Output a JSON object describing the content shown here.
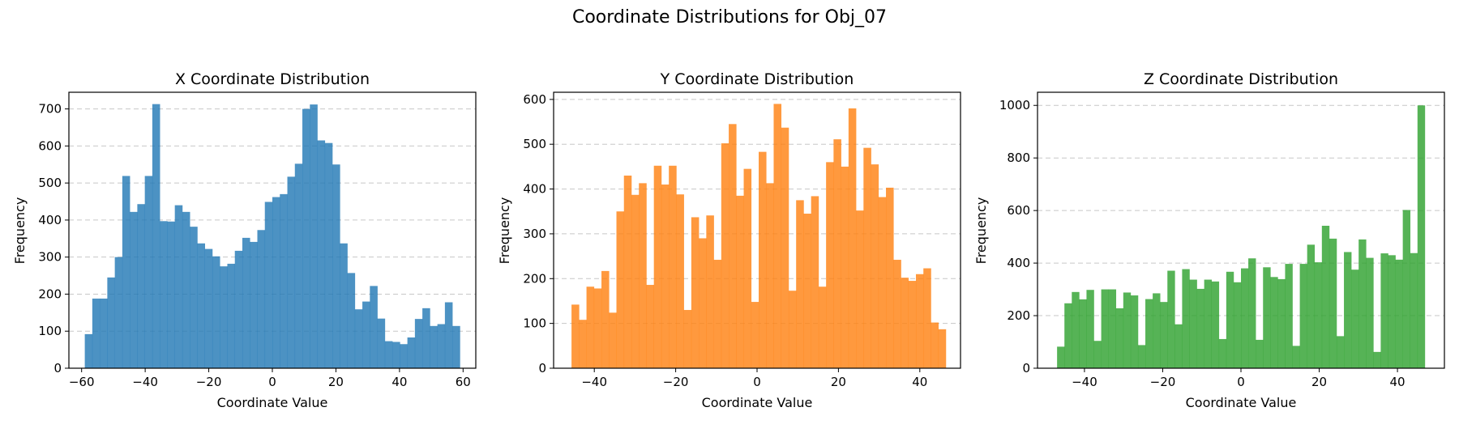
{
  "figure": {
    "title": "Coordinate Distributions for Obj_07"
  },
  "chart_data": [
    {
      "type": "bar",
      "title": "X Coordinate Distribution",
      "xlabel": "Coordinate Value",
      "ylabel": "Frequency",
      "color": "#1f77b4",
      "bar_opacity": 0.8,
      "grid": "y-dashed",
      "xlim": [
        -64,
        64
      ],
      "ylim": [
        0,
        745
      ],
      "xticks": [
        -60,
        -40,
        -20,
        0,
        20,
        40,
        60
      ],
      "yticks": [
        0,
        100,
        200,
        300,
        400,
        500,
        600,
        700
      ],
      "xtick_labels": [
        "−60",
        "−40",
        "−20",
        "0",
        "20",
        "40",
        "60"
      ],
      "ytick_labels": [
        "0",
        "100",
        "200",
        "300",
        "400",
        "500",
        "600",
        "700"
      ],
      "bin_start": -59,
      "bin_width": 2.36,
      "values": [
        92,
        188,
        188,
        245,
        300,
        519,
        422,
        443,
        519,
        713,
        397,
        396,
        440,
        422,
        382,
        337,
        322,
        302,
        275,
        282,
        317,
        352,
        341,
        373,
        449,
        462,
        470,
        517,
        552,
        700,
        712,
        615,
        608,
        550,
        337,
        257,
        159,
        180,
        222,
        134,
        73,
        71,
        65,
        83,
        133,
        162,
        114,
        119,
        178,
        114
      ]
    },
    {
      "type": "bar",
      "title": "Y Coordinate Distribution",
      "xlabel": "Coordinate Value",
      "ylabel": "Frequency",
      "color": "#ff7f0e",
      "bar_opacity": 0.8,
      "grid": "y-dashed",
      "xlim": [
        -50,
        50
      ],
      "ylim": [
        0,
        616
      ],
      "xticks": [
        -40,
        -20,
        0,
        20,
        40
      ],
      "yticks": [
        0,
        100,
        200,
        300,
        400,
        500,
        600
      ],
      "xtick_labels": [
        "−40",
        "−20",
        "0",
        "20",
        "40"
      ],
      "ytick_labels": [
        "0",
        "100",
        "200",
        "300",
        "400",
        "500",
        "600"
      ],
      "bin_start": -45.6,
      "bin_width": 1.84,
      "values": [
        142,
        108,
        182,
        178,
        217,
        124,
        350,
        430,
        387,
        413,
        186,
        452,
        410,
        452,
        388,
        130,
        337,
        290,
        341,
        242,
        502,
        545,
        385,
        445,
        148,
        483,
        413,
        590,
        537,
        173,
        375,
        345,
        384,
        182,
        460,
        511,
        450,
        580,
        352,
        492,
        455,
        382,
        403,
        242,
        202,
        195,
        210,
        223,
        102,
        87
      ]
    },
    {
      "type": "bar",
      "title": "Z Coordinate Distribution",
      "xlabel": "Coordinate Value",
      "ylabel": "Frequency",
      "color": "#2ca02c",
      "bar_opacity": 0.8,
      "grid": "y-dashed",
      "xlim": [
        -52,
        52
      ],
      "ylim": [
        0,
        1050
      ],
      "xticks": [
        -40,
        -20,
        0,
        20,
        40
      ],
      "yticks": [
        0,
        200,
        400,
        600,
        800,
        1000
      ],
      "xtick_labels": [
        "−40",
        "−20",
        "0",
        "20",
        "40"
      ],
      "ytick_labels": [
        "0",
        "200",
        "400",
        "600",
        "800",
        "1000"
      ],
      "bin_start": -47,
      "bin_width": 1.88,
      "values": [
        82,
        247,
        290,
        262,
        298,
        104,
        300,
        300,
        228,
        288,
        277,
        88,
        263,
        285,
        252,
        371,
        167,
        377,
        337,
        302,
        337,
        330,
        111,
        367,
        327,
        380,
        418,
        108,
        384,
        347,
        339,
        397,
        85,
        397,
        470,
        403,
        542,
        493,
        122,
        442,
        375,
        490,
        420,
        62,
        437,
        430,
        413,
        602,
        438,
        1000
      ]
    }
  ]
}
